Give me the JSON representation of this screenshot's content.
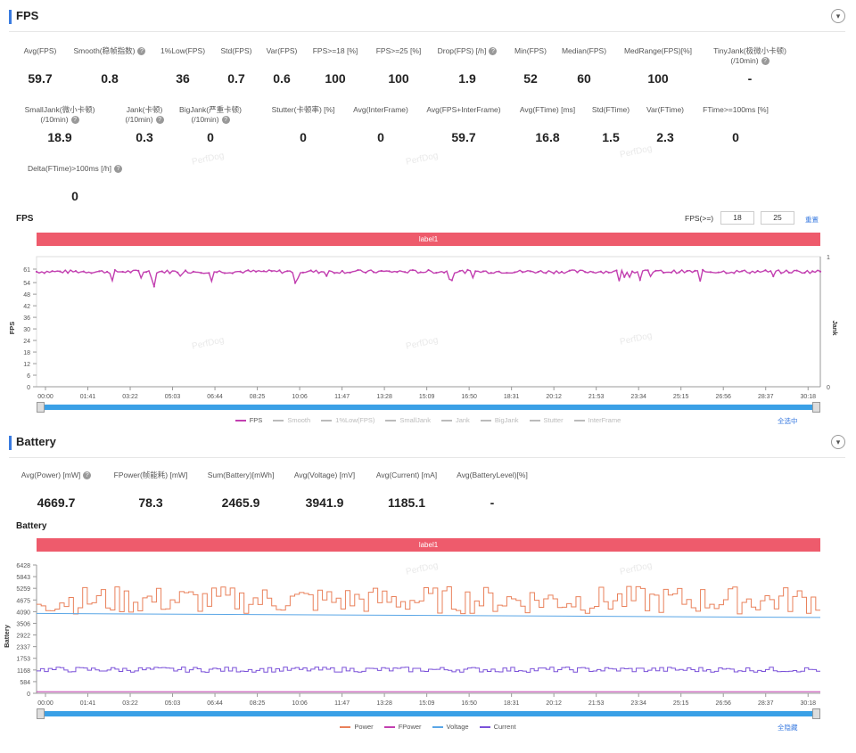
{
  "fps_section": {
    "title": "FPS",
    "collapse_icon": "chevron-down-icon",
    "metrics_row1": [
      {
        "label": "Avg(FPS)",
        "value": "59.7",
        "help": false
      },
      {
        "label": "Smooth(稳帧指数)",
        "value": "0.8",
        "help": true
      },
      {
        "label": "1%Low(FPS)",
        "value": "36",
        "help": false
      },
      {
        "label": "Std(FPS)",
        "value": "0.7",
        "help": false
      },
      {
        "label": "Var(FPS)",
        "value": "0.6",
        "help": false
      },
      {
        "label": "FPS>=18 [%]",
        "value": "100",
        "help": false
      },
      {
        "label": "FPS>=25 [%]",
        "value": "100",
        "help": false
      },
      {
        "label": "Drop(FPS) [/h]",
        "value": "1.9",
        "help": true
      },
      {
        "label": "Min(FPS)",
        "value": "52",
        "help": false
      },
      {
        "label": "Median(FPS)",
        "value": "60",
        "help": false
      },
      {
        "label": "MedRange(FPS)[%]",
        "value": "100",
        "help": false
      },
      {
        "label": "TinyJank(极微小卡顿)",
        "label2": "(/10min)",
        "value": "-",
        "help": true
      }
    ],
    "metrics_row2": [
      {
        "label": "SmallJank(微小卡顿)",
        "label2": "(/10min)",
        "value": "18.9",
        "help": true
      },
      {
        "label": "Jank(卡顿)",
        "label2": "(/10min)",
        "value": "0.3",
        "help": true
      },
      {
        "label": "BigJank(严重卡顿)",
        "label2": "(/10min)",
        "value": "0",
        "help": true
      },
      {
        "label": "Stutter(卡顿率) [%]",
        "value": "0",
        "help": false
      },
      {
        "label": "Avg(InterFrame)",
        "value": "0",
        "help": false
      },
      {
        "label": "Avg(FPS+InterFrame)",
        "value": "59.7",
        "help": false
      },
      {
        "label": "Avg(FTime) [ms]",
        "value": "16.8",
        "help": false
      },
      {
        "label": "Std(FTime)",
        "value": "1.5",
        "help": false
      },
      {
        "label": "Var(FTime)",
        "value": "2.3",
        "help": false
      },
      {
        "label": "FTime>=100ms [%]",
        "value": "0",
        "help": false
      }
    ],
    "metrics_row3": [
      {
        "label": "Delta(FTime)>100ms [/h]",
        "value": "0",
        "help": true
      }
    ]
  },
  "fps_chart": {
    "title": "FPS",
    "threshold_label": "FPS(>=)",
    "threshold1": "18",
    "threshold2": "25",
    "reset_label": "重置",
    "band_label": "label1",
    "select_all_label": "全选中",
    "y_axis_label": "FPS",
    "y2_axis_label": "Jank",
    "y_ticks": [
      "61",
      "54",
      "48",
      "42",
      "36",
      "30",
      "24",
      "18",
      "12",
      "6",
      "0"
    ],
    "y2_ticks": [
      "1",
      "0"
    ],
    "x_ticks": [
      "00:00",
      "01:41",
      "03:22",
      "05:03",
      "06:44",
      "08:25",
      "10:06",
      "11:47",
      "13:28",
      "15:09",
      "16:50",
      "18:31",
      "20:12",
      "21:53",
      "23:34",
      "25:15",
      "26:56",
      "28:37",
      "30:18"
    ],
    "legend": [
      {
        "name": "FPS",
        "color": "#c23fb0",
        "active": true
      },
      {
        "name": "Smooth",
        "color": "#bbbbbb",
        "active": false
      },
      {
        "name": "1%Low(FPS)",
        "color": "#bbbbbb",
        "active": false
      },
      {
        "name": "SmallJank",
        "color": "#bbbbbb",
        "active": false
      },
      {
        "name": "Jank",
        "color": "#bbbbbb",
        "active": false
      },
      {
        "name": "BigJank",
        "color": "#bbbbbb",
        "active": false
      },
      {
        "name": "Stutter",
        "color": "#bbbbbb",
        "active": false
      },
      {
        "name": "InterFrame",
        "color": "#bbbbbb",
        "active": false
      }
    ]
  },
  "battery_section": {
    "title": "Battery",
    "collapse_icon": "chevron-down-icon",
    "metrics": [
      {
        "label": "Avg(Power) [mW]",
        "value": "4669.7",
        "help": true
      },
      {
        "label": "FPower(帧能耗) [mW]",
        "value": "78.3",
        "help": false
      },
      {
        "label": "Sum(Battery)[mWh]",
        "value": "2465.9",
        "help": false
      },
      {
        "label": "Avg(Voltage) [mV]",
        "value": "3941.9",
        "help": false
      },
      {
        "label": "Avg(Current) [mA]",
        "value": "1185.1",
        "help": false
      },
      {
        "label": "Avg(BatteryLevel)[%]",
        "value": "-",
        "help": false
      }
    ]
  },
  "battery_chart": {
    "title": "Battery",
    "band_label": "label1",
    "select_all_label": "全隐藏",
    "y_axis_label": "Battery",
    "y_ticks": [
      "6428",
      "5843",
      "5259",
      "4675",
      "4090",
      "3506",
      "2922",
      "2337",
      "1753",
      "1168",
      "584",
      "0"
    ],
    "x_ticks": [
      "00:00",
      "01:41",
      "03:22",
      "05:03",
      "06:44",
      "08:25",
      "10:06",
      "11:47",
      "13:28",
      "15:09",
      "16:50",
      "18:31",
      "20:12",
      "21:53",
      "23:34",
      "25:15",
      "26:56",
      "28:37",
      "30:18"
    ],
    "legend": [
      {
        "name": "Power",
        "color": "#e9805a",
        "active": true
      },
      {
        "name": "FPower",
        "color": "#c23fb0",
        "active": true
      },
      {
        "name": "Voltage",
        "color": "#5aa6e6",
        "active": true
      },
      {
        "name": "Current",
        "color": "#7b52d9",
        "active": true
      }
    ]
  },
  "watermark": "PerfDog",
  "chart_data": [
    {
      "type": "line",
      "title": "FPS",
      "ylabel": "FPS",
      "ylim": [
        0,
        61
      ],
      "x_range": [
        "00:00",
        "31:10"
      ],
      "series": [
        {
          "name": "FPS",
          "mean": 59.7,
          "min": 52,
          "max": 61
        }
      ]
    },
    {
      "type": "line",
      "title": "Battery",
      "ylabel": "Battery",
      "ylim": [
        0,
        6428
      ],
      "x_range": [
        "00:00",
        "31:10"
      ],
      "series": [
        {
          "name": "Power",
          "mean": 4669.7,
          "range": [
            3100,
            5700
          ]
        },
        {
          "name": "FPower",
          "mean": 78.3
        },
        {
          "name": "Voltage",
          "start": 4000,
          "end": 3800
        },
        {
          "name": "Current",
          "mean": 1185.1,
          "range": [
            950,
            1420
          ]
        }
      ]
    }
  ]
}
